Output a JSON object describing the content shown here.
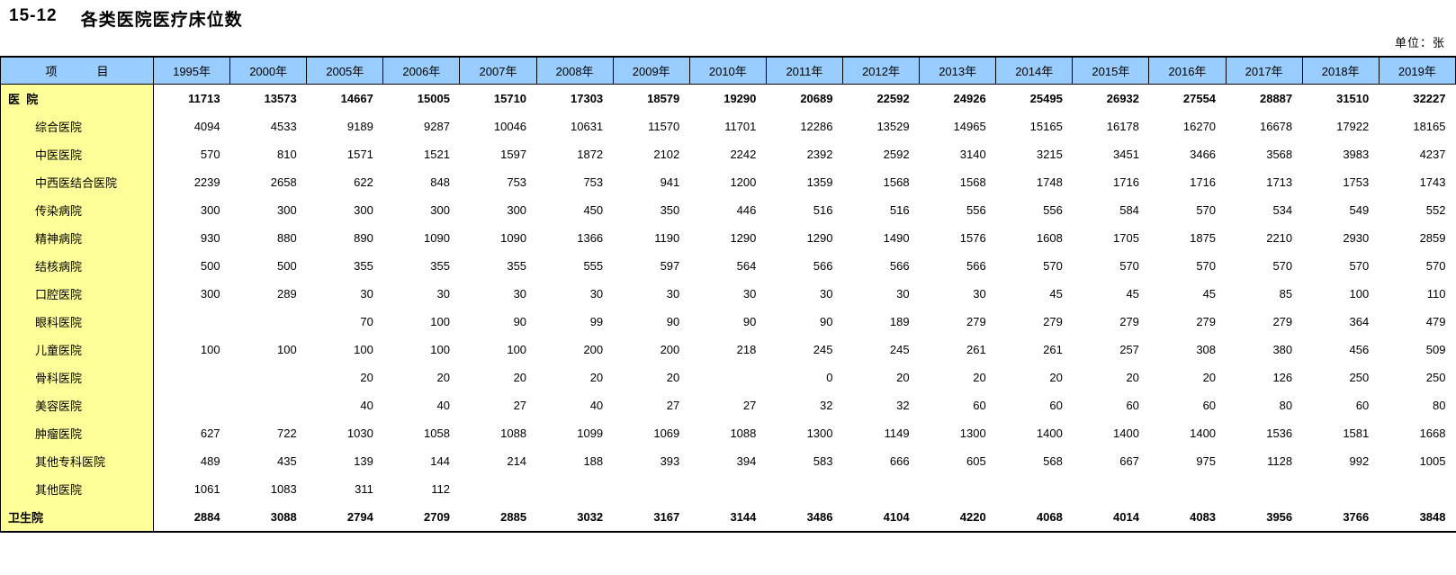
{
  "title": {
    "number": "15-12",
    "text": "各类医院医疗床位数"
  },
  "unit_label": "单位：张",
  "colors": {
    "header_bg": "#99CCFF",
    "label_bg": "#FFFF99"
  },
  "table": {
    "item_header": {
      "left": "项",
      "right": "目"
    },
    "year_columns": [
      "1995年",
      "2000年",
      "2005年",
      "2006年",
      "2007年",
      "2008年",
      "2009年",
      "2010年",
      "2011年",
      "2012年",
      "2013年",
      "2014年",
      "2015年",
      "2016年",
      "2017年",
      "2018年",
      "2019年"
    ],
    "rows": [
      {
        "label": "医  院",
        "bold": true,
        "indent": false,
        "values": [
          11713,
          13573,
          14667,
          15005,
          15710,
          17303,
          18579,
          19290,
          20689,
          22592,
          24926,
          25495,
          26932,
          27554,
          28887,
          31510,
          32227
        ]
      },
      {
        "label": "综合医院",
        "bold": false,
        "indent": true,
        "values": [
          4094,
          4533,
          9189,
          9287,
          10046,
          10631,
          11570,
          11701,
          12286,
          13529,
          14965,
          15165,
          16178,
          16270,
          16678,
          17922,
          18165
        ]
      },
      {
        "label": "中医医院",
        "bold": false,
        "indent": true,
        "values": [
          570,
          810,
          1571,
          1521,
          1597,
          1872,
          2102,
          2242,
          2392,
          2592,
          3140,
          3215,
          3451,
          3466,
          3568,
          3983,
          4237
        ]
      },
      {
        "label": "中西医结合医院",
        "bold": false,
        "indent": true,
        "values": [
          2239,
          2658,
          622,
          848,
          753,
          753,
          941,
          1200,
          1359,
          1568,
          1568,
          1748,
          1716,
          1716,
          1713,
          1753,
          1743
        ]
      },
      {
        "label": "传染病院",
        "bold": false,
        "indent": true,
        "values": [
          300,
          300,
          300,
          300,
          300,
          450,
          350,
          446,
          516,
          516,
          556,
          556,
          584,
          570,
          534,
          549,
          552
        ]
      },
      {
        "label": "精神病院",
        "bold": false,
        "indent": true,
        "values": [
          930,
          880,
          890,
          1090,
          1090,
          1366,
          1190,
          1290,
          1290,
          1490,
          1576,
          1608,
          1705,
          1875,
          2210,
          2930,
          2859
        ]
      },
      {
        "label": "结核病院",
        "bold": false,
        "indent": true,
        "values": [
          500,
          500,
          355,
          355,
          355,
          555,
          597,
          564,
          566,
          566,
          566,
          570,
          570,
          570,
          570,
          570,
          570
        ]
      },
      {
        "label": "口腔医院",
        "bold": false,
        "indent": true,
        "values": [
          300,
          289,
          30,
          30,
          30,
          30,
          30,
          30,
          30,
          30,
          30,
          45,
          45,
          45,
          85,
          100,
          110
        ]
      },
      {
        "label": "眼科医院",
        "bold": false,
        "indent": true,
        "values": [
          "",
          "",
          70,
          100,
          90,
          99,
          90,
          90,
          90,
          189,
          279,
          279,
          279,
          279,
          279,
          364,
          479
        ]
      },
      {
        "label": "儿童医院",
        "bold": false,
        "indent": true,
        "values": [
          100,
          100,
          100,
          100,
          100,
          200,
          200,
          218,
          245,
          245,
          261,
          261,
          257,
          308,
          380,
          456,
          509
        ]
      },
      {
        "label": "骨科医院",
        "bold": false,
        "indent": true,
        "values": [
          "",
          "",
          20,
          20,
          20,
          20,
          20,
          "",
          0,
          20,
          20,
          20,
          20,
          20,
          126,
          250,
          250
        ]
      },
      {
        "label": "美容医院",
        "bold": false,
        "indent": true,
        "values": [
          "",
          "",
          40,
          40,
          27,
          40,
          27,
          27,
          32,
          32,
          60,
          60,
          60,
          60,
          80,
          60,
          80
        ]
      },
      {
        "label": "肿瘤医院",
        "bold": false,
        "indent": true,
        "values": [
          627,
          722,
          1030,
          1058,
          1088,
          1099,
          1069,
          1088,
          1300,
          1149,
          1300,
          1400,
          1400,
          1400,
          1536,
          1581,
          1668
        ]
      },
      {
        "label": "其他专科医院",
        "bold": false,
        "indent": true,
        "values": [
          489,
          435,
          139,
          144,
          214,
          188,
          393,
          394,
          583,
          666,
          605,
          568,
          667,
          975,
          1128,
          992,
          1005
        ]
      },
      {
        "label": "其他医院",
        "bold": false,
        "indent": true,
        "values": [
          1061,
          1083,
          311,
          112,
          "",
          "",
          "",
          "",
          "",
          "",
          "",
          "",
          "",
          "",
          "",
          "",
          ""
        ]
      },
      {
        "label": "卫生院",
        "bold": true,
        "indent": false,
        "values": [
          2884,
          3088,
          2794,
          2709,
          2885,
          3032,
          3167,
          3144,
          3486,
          4104,
          4220,
          4068,
          4014,
          4083,
          3956,
          3766,
          3848
        ]
      }
    ]
  }
}
